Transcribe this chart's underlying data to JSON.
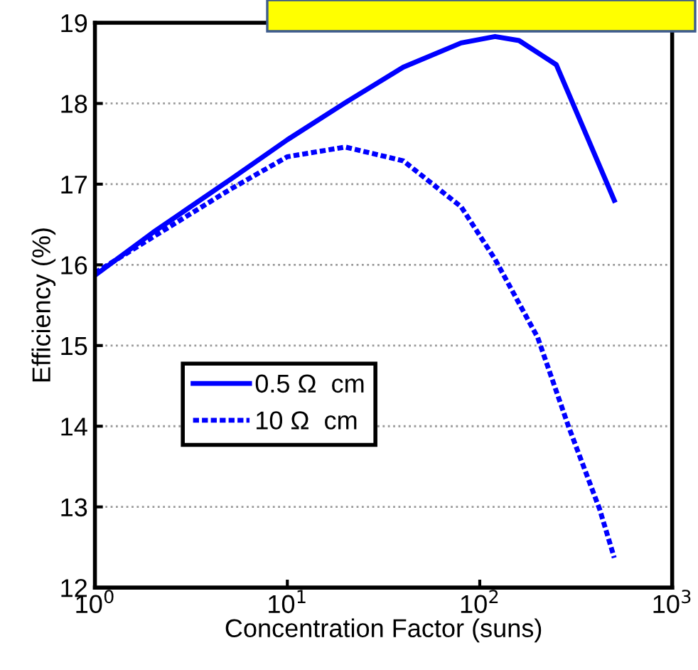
{
  "chart_data": {
    "type": "line",
    "xlabel": "Concentration Factor (suns)",
    "ylabel": "Efficiency (%)",
    "log": "x",
    "xlim": [
      1,
      1000
    ],
    "xticks": [
      {
        "value": 1,
        "label": "10$^{0}$"
      },
      {
        "value": 10,
        "label": "10$^{1}$"
      },
      {
        "value": 100,
        "label": "10$^{2}$"
      },
      {
        "value": 1000,
        "label": "10$^{3}$"
      }
    ],
    "ylim": [
      12,
      19
    ],
    "yticks": [
      12,
      13,
      14,
      15,
      16,
      17,
      18,
      19
    ],
    "grid": "y",
    "legend": "bottom left",
    "series": [
      {
        "name": "0.5 Ω  cm",
        "color": "#0000ff",
        "line_style": "solid",
        "x": [
          1,
          2,
          5,
          10,
          20,
          40,
          80,
          120,
          160,
          250,
          500
        ],
        "values": [
          15.87,
          16.4,
          17.05,
          17.55,
          18.01,
          18.45,
          18.75,
          18.83,
          18.78,
          18.48,
          16.8
        ]
      },
      {
        "name": "10 Ω  cm",
        "color": "#0000ff",
        "line_style": "dotted",
        "x": [
          1,
          5,
          10,
          20,
          40,
          80,
          120,
          200,
          290,
          420,
          500
        ],
        "values": [
          15.9,
          16.93,
          17.34,
          17.46,
          17.29,
          16.72,
          16.07,
          15.1,
          13.99,
          12.97,
          12.37
        ]
      }
    ]
  }
}
